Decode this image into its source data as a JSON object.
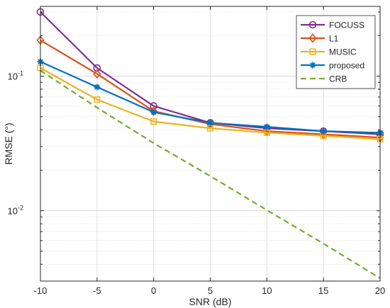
{
  "chart_data": {
    "type": "line",
    "xlabel": "SNR (dB)",
    "ylabel": "RMSE (°)",
    "yscale": "log",
    "xlim": [
      -10,
      20
    ],
    "ylim": [
      0.003,
      0.33
    ],
    "xticks": [
      -10,
      -5,
      0,
      5,
      10,
      15,
      20
    ],
    "xtick_labels": [
      "-10",
      "-5",
      "0",
      "5",
      "10",
      "15",
      "20"
    ],
    "yticks": [
      0.01,
      0.1
    ],
    "ytick_labels": [
      {
        "base": "10",
        "exp": "-2"
      },
      {
        "base": "10",
        "exp": "-1"
      }
    ],
    "grid": true,
    "legend_position": "top-right",
    "x": [
      -10,
      -5,
      0,
      5,
      10,
      15,
      20
    ],
    "series": [
      {
        "name": "FOCUSS",
        "color": "#7E2F8E",
        "marker": "circle",
        "dash": "solid",
        "values": [
          0.3,
          0.115,
          0.06,
          0.045,
          0.041,
          0.039,
          0.037
        ]
      },
      {
        "name": "L1",
        "color": "#D95319",
        "marker": "diamond",
        "dash": "solid",
        "values": [
          0.185,
          0.104,
          0.055,
          0.044,
          0.039,
          0.037,
          0.035
        ]
      },
      {
        "name": "MUSIC",
        "color": "#EDB120",
        "marker": "square",
        "dash": "solid",
        "values": [
          0.115,
          0.067,
          0.046,
          0.041,
          0.038,
          0.036,
          0.034
        ]
      },
      {
        "name": "proposed",
        "color": "#0072BD",
        "marker": "asterisk",
        "dash": "solid",
        "values": [
          0.128,
          0.083,
          0.054,
          0.045,
          0.042,
          0.039,
          0.038
        ]
      },
      {
        "name": "CRB",
        "color": "#77AC30",
        "marker": "none",
        "dash": "dashed",
        "values": [
          0.11,
          0.0584,
          0.0318,
          0.0181,
          0.0101,
          0.0057,
          0.00315
        ]
      }
    ]
  }
}
